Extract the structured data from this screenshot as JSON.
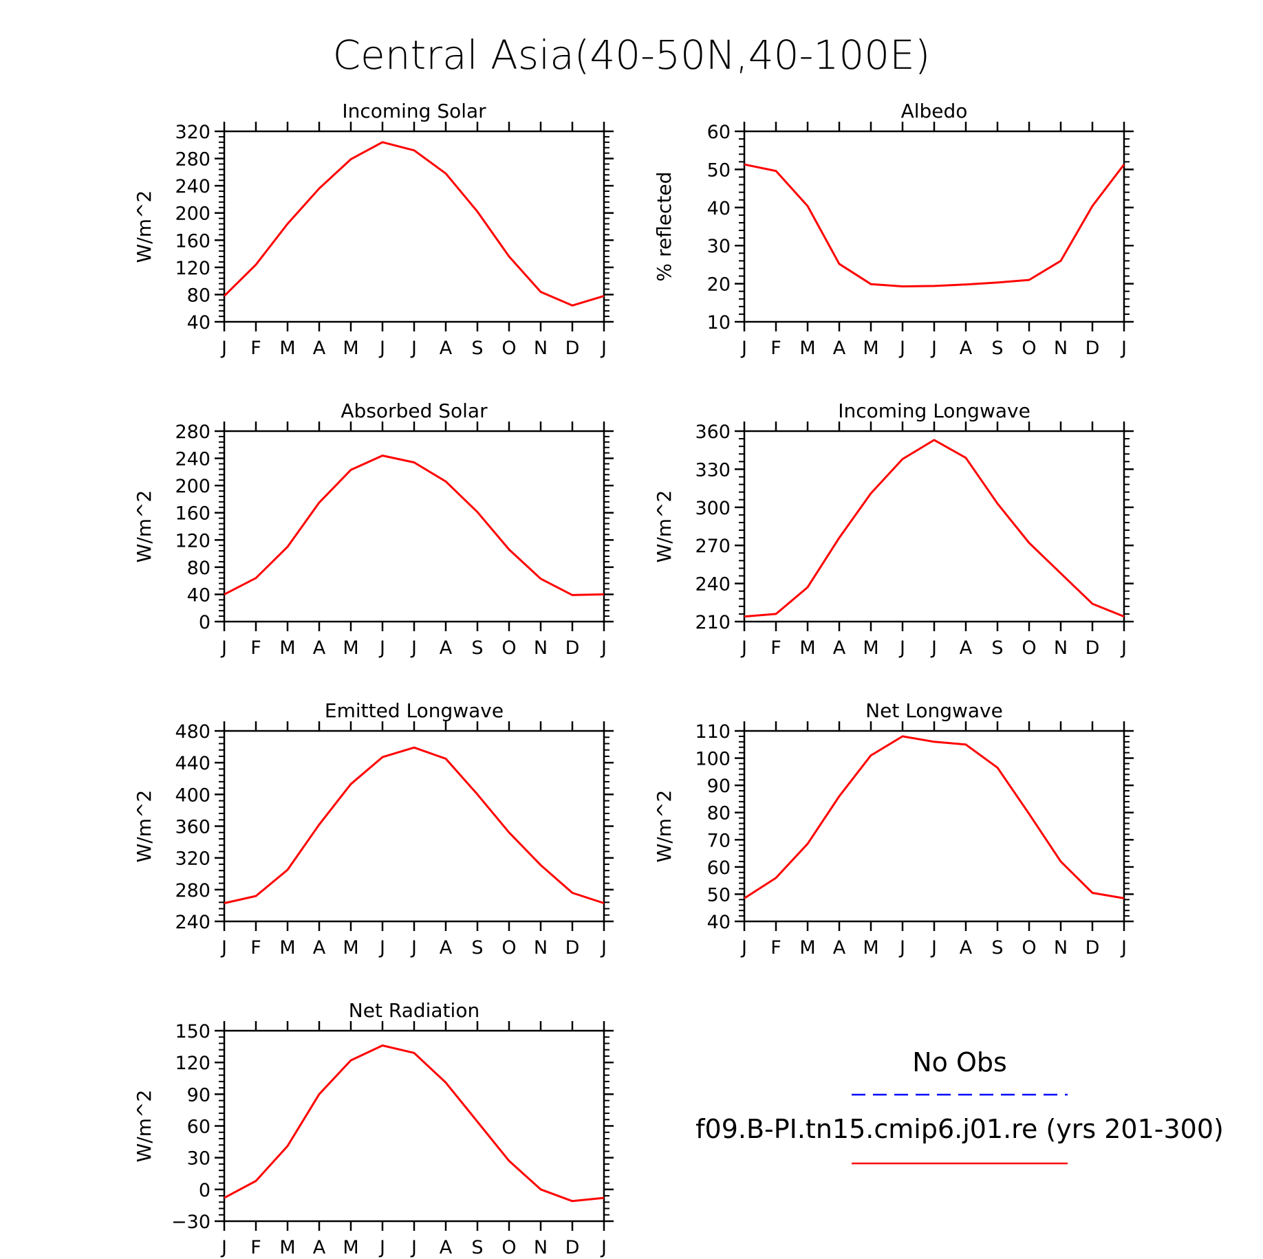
{
  "title": "Central Asia(40-50N,40-100E)",
  "months": [
    "J",
    "F",
    "M",
    "A",
    "M",
    "J",
    "J",
    "A",
    "S",
    "O",
    "N",
    "D",
    "J"
  ],
  "colors": {
    "model": "#ff0000",
    "obs": "#0000ff",
    "axis": "#000000"
  },
  "legend": {
    "obs_label": "No Obs",
    "model_label": "f09.B-PI.tn15.cmip6.j01.re (yrs 201-300)"
  },
  "chart_data": [
    {
      "type": "line",
      "title": "Incoming Solar",
      "ylabel": "W/m^2",
      "ylim": [
        40,
        320
      ],
      "yticks": [
        40,
        80,
        120,
        160,
        200,
        240,
        280,
        320
      ],
      "ytick_labels": [
        "40",
        "80",
        "120",
        "160",
        "200",
        "240",
        "280",
        "320"
      ],
      "series": [
        {
          "values": [
            78,
            124,
            184,
            236,
            279,
            304,
            292,
            258,
            202,
            136,
            84,
            64,
            78
          ]
        }
      ]
    },
    {
      "type": "line",
      "title": "Albedo",
      "ylabel": "% reflected",
      "ylim": [
        10,
        60
      ],
      "yticks": [
        10,
        20,
        30,
        40,
        50,
        60
      ],
      "ytick_labels": [
        "10",
        "20",
        "30",
        "40",
        "50",
        "60"
      ],
      "series": [
        {
          "values": [
            51.3,
            49.6,
            40.4,
            25.2,
            19.9,
            19.3,
            19.4,
            19.8,
            20.3,
            21.0,
            26.0,
            40.4,
            51.3
          ]
        }
      ]
    },
    {
      "type": "line",
      "title": "Absorbed Solar",
      "ylabel": "W/m^2",
      "ylim": [
        0,
        280
      ],
      "yticks": [
        0,
        40,
        80,
        120,
        160,
        200,
        240,
        280
      ],
      "ytick_labels": [
        "0",
        "40",
        "80",
        "120",
        "160",
        "200",
        "240",
        "280"
      ],
      "series": [
        {
          "values": [
            40,
            64,
            110,
            175,
            223,
            244,
            234,
            206,
            161,
            106,
            63,
            39,
            40
          ]
        }
      ]
    },
    {
      "type": "line",
      "title": "Incoming Longwave",
      "ylabel": "W/m^2",
      "ylim": [
        210,
        360
      ],
      "yticks": [
        210,
        240,
        270,
        300,
        330,
        360
      ],
      "ytick_labels": [
        "210",
        "240",
        "270",
        "300",
        "330",
        "360"
      ],
      "series": [
        {
          "values": [
            214,
            216,
            237,
            276,
            311,
            338,
            353,
            339,
            303,
            272,
            248,
            224,
            214
          ]
        }
      ]
    },
    {
      "type": "line",
      "title": "Emitted Longwave",
      "ylabel": "W/m^2",
      "ylim": [
        240,
        480
      ],
      "yticks": [
        240,
        280,
        320,
        360,
        400,
        440,
        480
      ],
      "ytick_labels": [
        "240",
        "280",
        "320",
        "360",
        "400",
        "440",
        "480"
      ],
      "series": [
        {
          "values": [
            263,
            272,
            305,
            362,
            413,
            447,
            459,
            445,
            400,
            352,
            311,
            276,
            263
          ]
        }
      ]
    },
    {
      "type": "line",
      "title": "Net Longwave",
      "ylabel": "W/m^2",
      "ylim": [
        40,
        110
      ],
      "yticks": [
        40,
        50,
        60,
        70,
        80,
        90,
        100,
        110
      ],
      "ytick_labels": [
        "40",
        "50",
        "60",
        "70",
        "80",
        "90",
        "100",
        "110"
      ],
      "series": [
        {
          "values": [
            48.5,
            56,
            68.5,
            86,
            101,
            108,
            106,
            105,
            96.5,
            79.5,
            62,
            50.5,
            48.5
          ]
        }
      ]
    },
    {
      "type": "line",
      "title": "Net Radiation",
      "ylabel": "W/m^2",
      "ylim": [
        -30,
        150
      ],
      "yticks": [
        -30,
        0,
        30,
        60,
        90,
        120,
        150
      ],
      "ytick_labels": [
        "−30",
        "0",
        "30",
        "60",
        "90",
        "120",
        "150"
      ],
      "series": [
        {
          "values": [
            -8,
            8,
            41,
            90,
            122,
            136,
            129,
            101,
            64,
            27,
            0,
            -11,
            -8
          ]
        }
      ]
    }
  ]
}
